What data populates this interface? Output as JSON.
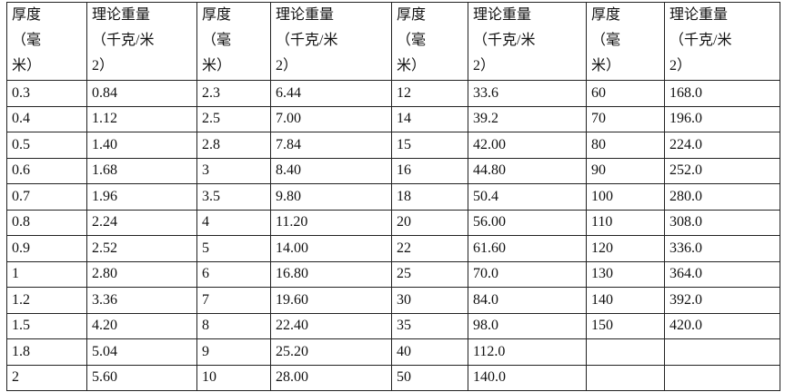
{
  "header": [
    [
      "厚度",
      "（毫",
      "米）"
    ],
    [
      "理论重量",
      "（千克/米",
      "2）"
    ],
    [
      "厚度",
      "（毫",
      "米）"
    ],
    [
      "理论重量",
      "（千克/米",
      "2）"
    ],
    [
      "厚度",
      "（毫",
      "米）"
    ],
    [
      "理论重量",
      "（千克/米",
      "2）"
    ],
    [
      "厚度",
      "（毫",
      "米）"
    ],
    [
      "理论重量",
      "（千克/米",
      "2）"
    ]
  ],
  "rows": [
    [
      "0.3",
      "0.84",
      "2.3",
      "6.44",
      "12",
      "33.6",
      "60",
      "168.0"
    ],
    [
      "0.4",
      "1.12",
      "2.5",
      "7.00",
      "14",
      "39.2",
      "70",
      "196.0"
    ],
    [
      "0.5",
      "1.40",
      "2.8",
      "7.84",
      "15",
      "42.00",
      "80",
      "224.0"
    ],
    [
      "0.6",
      "1.68",
      "3",
      "8.40",
      "16",
      "44.80",
      "90",
      "252.0"
    ],
    [
      "0.7",
      "1.96",
      "3.5",
      "9.80",
      "18",
      "50.4",
      "100",
      "280.0"
    ],
    [
      "0.8",
      "2.24",
      "4",
      "11.20",
      "20",
      "56.00",
      "110",
      "308.0"
    ],
    [
      "0.9",
      "2.52",
      "5",
      "14.00",
      "22",
      "61.60",
      "120",
      "336.0"
    ],
    [
      "1",
      "2.80",
      "6",
      "16.80",
      "25",
      "70.0",
      "130",
      "364.0"
    ],
    [
      "1.2",
      "3.36",
      "7",
      "19.60",
      "30",
      "84.0",
      "140",
      "392.0"
    ],
    [
      "1.5",
      "4.20",
      "8",
      "22.40",
      "35",
      "98.0",
      "150",
      "420.0"
    ],
    [
      "1.8",
      "5.04",
      "9",
      "25.20",
      "40",
      "112.0",
      "",
      ""
    ],
    [
      "2",
      "5.60",
      "10",
      "28.00",
      "50",
      "140.0",
      "",
      ""
    ]
  ]
}
